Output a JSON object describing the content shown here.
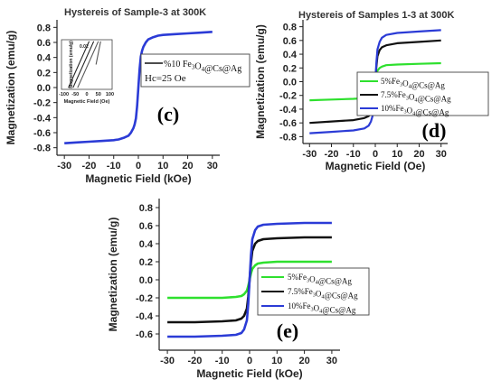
{
  "chart_data": [
    {
      "type": "line",
      "panel": "(c)",
      "title": "Hystereis of Sample-3 at 300K",
      "xlabel": "Magnetic Field (kOe)",
      "ylabel": "Magnetization (emu/g)",
      "xlim": [
        -33,
        33
      ],
      "ylim": [
        -0.9,
        0.9
      ],
      "xticks": [
        -30,
        -20,
        -10,
        0,
        10,
        20,
        30
      ],
      "yticks": [
        -0.8,
        -0.6,
        -0.4,
        -0.2,
        0.0,
        0.2,
        0.4,
        0.6,
        0.8
      ],
      "series": [
        {
          "name": "%10 Fe3O4@Cs@Ag",
          "color": "#2b3bd6",
          "x": [
            -30,
            -25,
            -20,
            -15,
            -10,
            -8,
            -6,
            -4,
            -3,
            -2,
            -1.5,
            -1,
            -0.5,
            0,
            0.5,
            1,
            1.5,
            2,
            3,
            4,
            6,
            8,
            10,
            15,
            20,
            25,
            30
          ],
          "y": [
            -0.74,
            -0.73,
            -0.72,
            -0.71,
            -0.7,
            -0.69,
            -0.67,
            -0.64,
            -0.6,
            -0.54,
            -0.49,
            -0.41,
            -0.25,
            0.0,
            0.25,
            0.41,
            0.49,
            0.54,
            0.6,
            0.64,
            0.67,
            0.69,
            0.7,
            0.71,
            0.72,
            0.73,
            0.74
          ]
        }
      ],
      "annotation": "Hc=25 Oe",
      "inset": {
        "xlabel": "Magnetic Field (Oe)",
        "ylabel": "Magnetization (emu/g)",
        "xticks": [
          -100,
          -50,
          0,
          50,
          100
        ],
        "ytick_label": "0.02",
        "xlim": [
          -110,
          110
        ],
        "ylim": [
          -0.03,
          0.03
        ]
      }
    },
    {
      "type": "line",
      "panel": "(d)",
      "title": "Hystereis of Samples 1-3 at 300K",
      "xlabel": "Magnetic Field (Oe)",
      "ylabel": "Magnetization (emu/g)",
      "xlim": [
        -33,
        33
      ],
      "ylim": [
        -0.9,
        0.9
      ],
      "xticks": [
        -30,
        -20,
        -10,
        0,
        10,
        20,
        30
      ],
      "yticks": [
        -0.8,
        -0.6,
        -0.4,
        -0.2,
        0.0,
        0.2,
        0.4,
        0.6,
        0.8
      ],
      "legend": "right",
      "series": [
        {
          "name": "5%Fe3O4@Cs@Ag",
          "color": "#2ee02e",
          "x": [
            -30,
            -20,
            -10,
            -5,
            -3,
            -2,
            -1,
            -0.5,
            0,
            0.5,
            1,
            2,
            3,
            5,
            10,
            20,
            30
          ],
          "y": [
            -0.27,
            -0.26,
            -0.25,
            -0.24,
            -0.22,
            -0.2,
            -0.16,
            -0.1,
            0.0,
            0.1,
            0.16,
            0.2,
            0.22,
            0.24,
            0.25,
            0.26,
            0.27
          ]
        },
        {
          "name": "7.5%Fe3O4@Cs@Ag",
          "color": "#111111",
          "x": [
            -30,
            -20,
            -10,
            -5,
            -3,
            -2,
            -1,
            -0.5,
            0,
            0.5,
            1,
            2,
            3,
            5,
            10,
            20,
            30
          ],
          "y": [
            -0.6,
            -0.58,
            -0.56,
            -0.53,
            -0.5,
            -0.46,
            -0.37,
            -0.22,
            0.0,
            0.22,
            0.37,
            0.46,
            0.5,
            0.53,
            0.56,
            0.58,
            0.6
          ]
        },
        {
          "name": "10%Fe3O4@Cs@Ag",
          "color": "#2b3bd6",
          "x": [
            -30,
            -20,
            -10,
            -5,
            -3,
            -2,
            -1,
            -0.5,
            0,
            0.5,
            1,
            2,
            3,
            5,
            10,
            20,
            30
          ],
          "y": [
            -0.75,
            -0.73,
            -0.71,
            -0.68,
            -0.64,
            -0.58,
            -0.47,
            -0.28,
            0.0,
            0.28,
            0.47,
            0.58,
            0.64,
            0.68,
            0.71,
            0.73,
            0.75
          ]
        }
      ]
    },
    {
      "type": "line",
      "panel": "(e)",
      "title": "",
      "xlabel": "Magnetic Field (kOe)",
      "ylabel": "Magnetization (emu/g)",
      "xlim": [
        -33,
        33
      ],
      "ylim": [
        -0.78,
        0.9
      ],
      "xticks": [
        -30,
        -20,
        -10,
        0,
        10,
        20,
        30
      ],
      "yticks": [
        -0.6,
        -0.4,
        -0.2,
        0.0,
        0.2,
        0.4,
        0.6,
        0.8
      ],
      "legend": "right",
      "series": [
        {
          "name": "5%Fe3O4@Cs@Ag",
          "color": "#2ee02e",
          "x": [
            -30,
            -20,
            -10,
            -5,
            -3,
            -2,
            -1,
            -0.5,
            0,
            0.5,
            1,
            2,
            3,
            5,
            10,
            20,
            30
          ],
          "y": [
            -0.2,
            -0.2,
            -0.2,
            -0.19,
            -0.18,
            -0.16,
            -0.12,
            -0.07,
            0.0,
            0.07,
            0.12,
            0.16,
            0.18,
            0.19,
            0.2,
            0.2,
            0.2
          ]
        },
        {
          "name": "7.5%Fe3O4@Cs@Ag",
          "color": "#111111",
          "x": [
            -30,
            -20,
            -10,
            -5,
            -3,
            -2,
            -1,
            -0.5,
            0,
            0.5,
            1,
            2,
            3,
            5,
            10,
            20,
            30
          ],
          "y": [
            -0.47,
            -0.47,
            -0.46,
            -0.45,
            -0.43,
            -0.4,
            -0.32,
            -0.19,
            0.0,
            0.19,
            0.32,
            0.4,
            0.43,
            0.45,
            0.46,
            0.47,
            0.47
          ]
        },
        {
          "name": "10%Fe3O4@Cs@Ag",
          "color": "#2b3bd6",
          "x": [
            -30,
            -20,
            -10,
            -5,
            -3,
            -2,
            -1,
            -0.5,
            0,
            0.5,
            1,
            2,
            3,
            5,
            10,
            20,
            30
          ],
          "y": [
            -0.63,
            -0.63,
            -0.62,
            -0.61,
            -0.59,
            -0.55,
            -0.45,
            -0.27,
            0.0,
            0.27,
            0.45,
            0.55,
            0.59,
            0.61,
            0.62,
            0.63,
            0.63
          ]
        }
      ]
    }
  ]
}
